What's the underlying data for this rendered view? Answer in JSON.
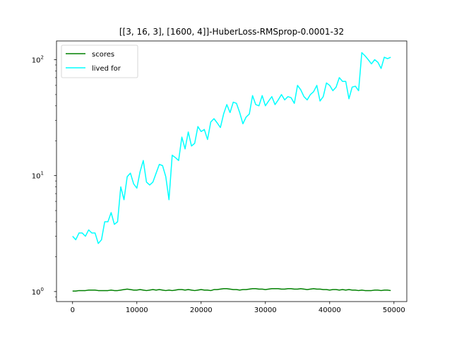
{
  "chart_data": {
    "type": "line",
    "title": "[[3, 16, 3], [1600, 4]]-HuberLoss-RMSprop-0.0001-32",
    "xlabel": "",
    "ylabel": "",
    "yscale": "log",
    "xlim": [
      -2500,
      52000
    ],
    "ylim": [
      0.82,
      145
    ],
    "x_ticks": [
      0,
      10000,
      20000,
      30000,
      40000,
      50000
    ],
    "x_tick_labels": [
      "0",
      "10000",
      "20000",
      "30000",
      "40000",
      "50000"
    ],
    "y_ticks": [
      {
        "value": 1,
        "base": "10",
        "exp": "0"
      },
      {
        "value": 10,
        "base": "10",
        "exp": "1"
      },
      {
        "value": 100,
        "base": "10",
        "exp": "2"
      }
    ],
    "legend_position": "upper-left",
    "grid": false,
    "x": [
      0,
      500,
      1000,
      1500,
      2000,
      2500,
      3000,
      3500,
      4000,
      4500,
      5000,
      5500,
      6000,
      6500,
      7000,
      7500,
      8000,
      8500,
      9000,
      9500,
      10000,
      10500,
      11000,
      11500,
      12000,
      12500,
      13000,
      13500,
      14000,
      14500,
      15000,
      15500,
      16000,
      16500,
      17000,
      17500,
      18000,
      18500,
      19000,
      19500,
      20000,
      20500,
      21000,
      21500,
      22000,
      22500,
      23000,
      23500,
      24000,
      24500,
      25000,
      25500,
      26000,
      26500,
      27000,
      27500,
      28000,
      28500,
      29000,
      29500,
      30000,
      30500,
      31000,
      31500,
      32000,
      32500,
      33000,
      33500,
      34000,
      34500,
      35000,
      35500,
      36000,
      36500,
      37000,
      37500,
      38000,
      38500,
      39000,
      39500,
      40000,
      40500,
      41000,
      41500,
      42000,
      42500,
      43000,
      43500,
      44000,
      44500,
      45000,
      45500,
      46000,
      46500,
      47000,
      47500,
      48000,
      48500,
      49000,
      49500
    ],
    "series": [
      {
        "name": "scores",
        "color": "#008000",
        "values": [
          1.01,
          1.01,
          1.02,
          1.02,
          1.02,
          1.03,
          1.03,
          1.03,
          1.02,
          1.02,
          1.02,
          1.02,
          1.03,
          1.02,
          1.02,
          1.03,
          1.04,
          1.05,
          1.04,
          1.03,
          1.03,
          1.04,
          1.03,
          1.02,
          1.03,
          1.04,
          1.03,
          1.04,
          1.03,
          1.02,
          1.03,
          1.02,
          1.03,
          1.04,
          1.04,
          1.03,
          1.04,
          1.03,
          1.02,
          1.03,
          1.04,
          1.03,
          1.03,
          1.02,
          1.04,
          1.04,
          1.05,
          1.06,
          1.06,
          1.05,
          1.04,
          1.04,
          1.03,
          1.04,
          1.04,
          1.05,
          1.06,
          1.06,
          1.05,
          1.05,
          1.04,
          1.05,
          1.06,
          1.06,
          1.06,
          1.05,
          1.05,
          1.06,
          1.06,
          1.05,
          1.05,
          1.06,
          1.05,
          1.04,
          1.05,
          1.06,
          1.05,
          1.05,
          1.04,
          1.04,
          1.03,
          1.04,
          1.04,
          1.03,
          1.04,
          1.03,
          1.04,
          1.03,
          1.03,
          1.02,
          1.03,
          1.02,
          1.02,
          1.02,
          1.03,
          1.03,
          1.02,
          1.03,
          1.03,
          1.02
        ]
      },
      {
        "name": "lived for",
        "color": "#00ffff",
        "values": [
          3.0,
          2.8,
          3.2,
          3.2,
          3.0,
          3.4,
          3.2,
          3.2,
          2.6,
          2.8,
          4.0,
          4.0,
          4.8,
          3.8,
          4.0,
          8.0,
          6.2,
          9.8,
          10.5,
          8.5,
          7.8,
          10.8,
          13.5,
          8.8,
          8.3,
          8.8,
          10.5,
          12.5,
          12.2,
          9.8,
          6.2,
          15.0,
          14.3,
          13.5,
          21.5,
          17.0,
          23.8,
          18.0,
          19.0,
          26.5,
          24.0,
          25.0,
          20.5,
          29.0,
          31.0,
          28.5,
          26.0,
          34.0,
          41.0,
          35.0,
          43.0,
          42.0,
          35.0,
          28.0,
          32.0,
          34.0,
          49.0,
          41.0,
          40.0,
          49.0,
          40.0,
          44.0,
          48.0,
          41.0,
          45.0,
          50.0,
          45.0,
          48.0,
          47.0,
          42.0,
          60.0,
          55.0,
          48.0,
          45.0,
          50.0,
          53.0,
          60.0,
          44.0,
          48.0,
          63.0,
          60.0,
          54.0,
          58.0,
          70.0,
          65.0,
          65.0,
          46.0,
          58.0,
          59.0,
          54.0,
          115.0,
          108.0,
          100.0,
          92.0,
          100.0,
          95.0,
          84.0,
          105.0,
          102.0,
          105.0
        ]
      }
    ]
  }
}
